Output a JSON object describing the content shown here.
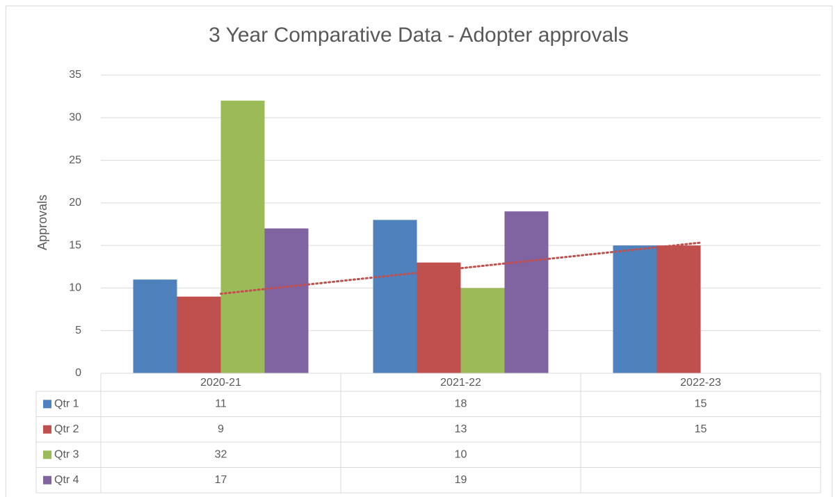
{
  "chart_data": {
    "type": "bar",
    "title": "3 Year Comparative Data - Adopter approvals",
    "y_label": "Approvals",
    "categories": [
      "2020-21",
      "2021-22",
      "2022-23"
    ],
    "series": [
      {
        "name": "Qtr 1",
        "color": "#4f81bd",
        "values": [
          11,
          18,
          15
        ]
      },
      {
        "name": "Qtr 2",
        "color": "#c0504d",
        "values": [
          9,
          13,
          15
        ],
        "trendline": "linear"
      },
      {
        "name": "Qtr 3",
        "color": "#9bbb59",
        "values": [
          32,
          10,
          null
        ]
      },
      {
        "name": "Qtr 4",
        "color": "#8064a2",
        "values": [
          17,
          19,
          null
        ]
      }
    ],
    "ylim": [
      0,
      35
    ],
    "yticks": [
      0,
      5,
      10,
      15,
      20,
      25,
      30,
      35
    ],
    "grid": true,
    "data_table": true
  }
}
